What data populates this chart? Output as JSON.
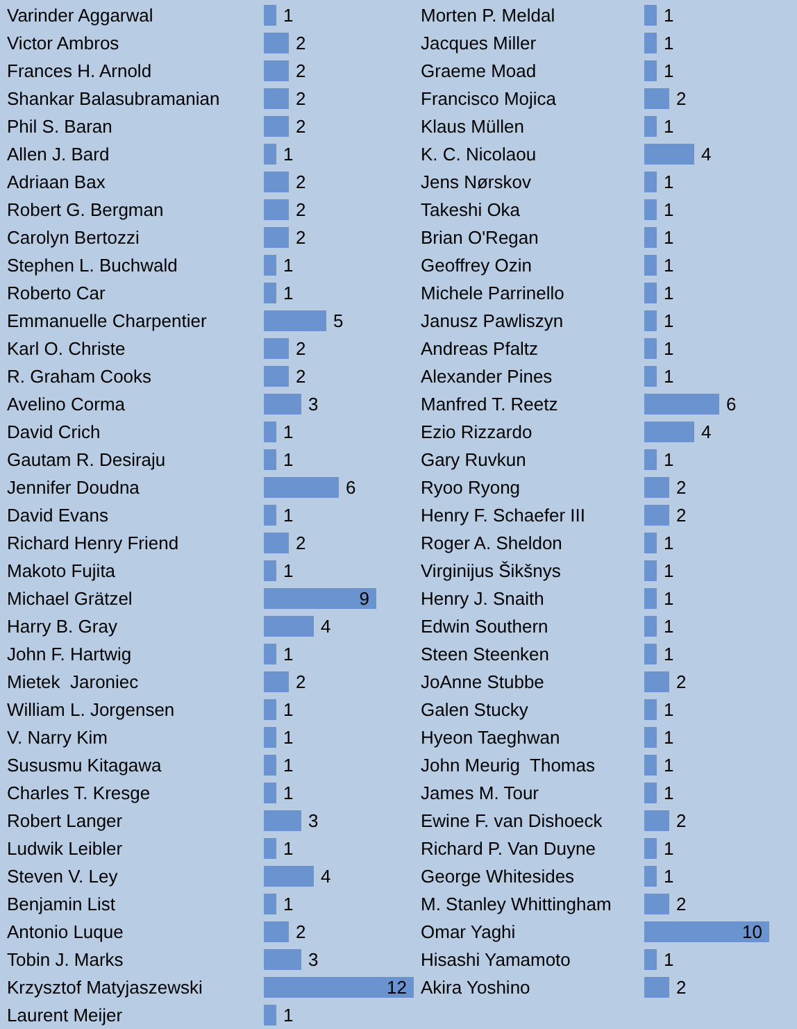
{
  "chart_data": [
    {
      "type": "bar",
      "orientation": "horizontal",
      "data_labels": true,
      "tick_labels": "y",
      "categories": [
        "Varinder Aggarwal",
        "Victor Ambros",
        "Frances H. Arnold",
        "Shankar Balasubramanian",
        "Phil S. Baran",
        "Allen J. Bard",
        "Adriaan Bax",
        "Robert G. Bergman",
        "Carolyn Bertozzi",
        "Stephen L. Buchwald",
        "Roberto Car",
        "Emmanuelle Charpentier",
        "Karl O. Christe",
        "R. Graham Cooks",
        "Avelino Corma",
        "David Crich",
        "Gautam R. Desiraju",
        "Jennifer Doudna",
        "David Evans",
        "Richard Henry Friend",
        "Makoto Fujita",
        "Michael Grätzel",
        "Harry B. Gray",
        "John F. Hartwig",
        "Mietek  Jaroniec",
        "William L. Jorgensen",
        "V. Narry Kim",
        "Sususmu Kitagawa",
        "Charles T. Kresge",
        "Robert Langer",
        "Ludwik Leibler",
        "Steven V. Ley",
        "Benjamin List",
        "Antonio Luque",
        "Tobin J. Marks",
        "Krzysztof Matyjaszewski",
        "Laurent Meijer"
      ],
      "series": [
        {
          "color": "#6a93cf",
          "values": [
            1,
            2,
            2,
            2,
            2,
            1,
            2,
            2,
            2,
            1,
            1,
            5,
            2,
            2,
            3,
            1,
            1,
            6,
            1,
            2,
            1,
            9,
            4,
            1,
            2,
            1,
            1,
            1,
            1,
            3,
            1,
            4,
            1,
            2,
            3,
            12,
            1
          ]
        }
      ]
    },
    {
      "type": "bar",
      "orientation": "horizontal",
      "data_labels": true,
      "tick_labels": "y",
      "categories": [
        "Morten P. Meldal",
        "Jacques Miller",
        "Graeme Moad",
        "Francisco Mojica",
        "Klaus Müllen",
        "K. C. Nicolaou",
        "Jens Nørskov",
        "Takeshi Oka",
        "Brian O'Regan",
        "Geoffrey Ozin",
        "Michele Parrinello",
        "Janusz Pawliszyn",
        "Andreas Pfaltz",
        "Alexander Pines",
        "Manfred T. Reetz",
        "Ezio Rizzardo",
        "Gary Ruvkun",
        "Ryoo Ryong",
        "Henry F. Schaefer III",
        "Roger A. Sheldon",
        "Virginijus Šikšnys",
        "Henry J. Snaith",
        "Edwin Southern",
        "Steen Steenken",
        "JoAnne Stubbe",
        "Galen Stucky",
        "Hyeon Taeghwan",
        "John Meurig  Thomas",
        "James M. Tour",
        "Ewine F. van Dishoeck",
        "Richard P. Van Duyne",
        "George Whitesides",
        "M. Stanley Whittingham",
        "Omar Yaghi",
        "Hisashi Yamamoto",
        "Akira Yoshino"
      ],
      "series": [
        {
          "color": "#6a93cf",
          "values": [
            1,
            1,
            1,
            2,
            1,
            4,
            1,
            1,
            1,
            1,
            1,
            1,
            1,
            1,
            6,
            4,
            1,
            2,
            2,
            1,
            1,
            1,
            1,
            1,
            2,
            1,
            1,
            1,
            1,
            2,
            1,
            1,
            2,
            10,
            1,
            2
          ]
        }
      ]
    }
  ]
}
